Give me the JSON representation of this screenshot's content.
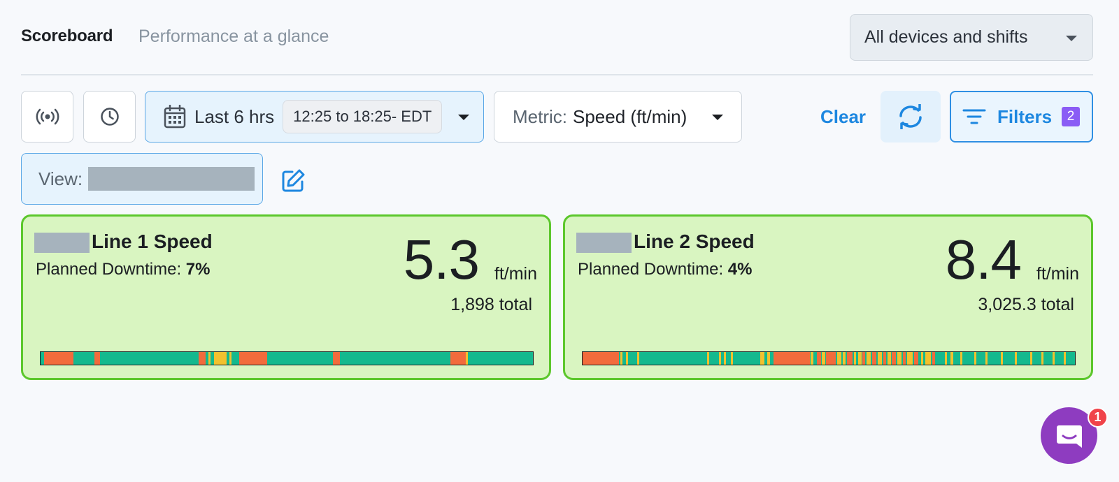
{
  "header": {
    "title": "Scoreboard",
    "subtitle": "Performance at a glance",
    "device_filter": "All devices and shifts"
  },
  "toolbar": {
    "live_icon": "broadcast-icon",
    "history_icon": "clock-icon",
    "date_range": {
      "label": "Last 6 hrs",
      "range": "12:25 to 18:25- EDT",
      "icon": "calendar-icon"
    },
    "metric": {
      "key": "Metric:",
      "value": "Speed (ft/min)"
    },
    "clear_label": "Clear",
    "refresh_icon": "refresh-icon",
    "filters": {
      "label": "Filters",
      "count": "2",
      "icon": "filter-lines-icon"
    }
  },
  "view": {
    "label": "View:",
    "edit_icon": "edit-icon"
  },
  "colors": {
    "running": "#14b98e",
    "down": "#f26b3c",
    "slow": "#f2c12e",
    "card_bg": "#d9f5c1",
    "card_border": "#5cc72c",
    "accent": "#1d87e0",
    "chat": "#8e3cc0"
  },
  "cards": [
    {
      "name": "Line 1 Speed",
      "planned_downtime_label": "Planned Downtime:",
      "planned_downtime_value": "7%",
      "value": "5.3",
      "unit": "ft/min",
      "total": "1,898 total"
    },
    {
      "name": "Line 2 Speed",
      "planned_downtime_label": "Planned Downtime:",
      "planned_downtime_value": "4%",
      "value": "8.4",
      "unit": "ft/min",
      "total": "3,025.3 total"
    }
  ],
  "chat": {
    "icon": "chat-icon",
    "badge": "1"
  }
}
